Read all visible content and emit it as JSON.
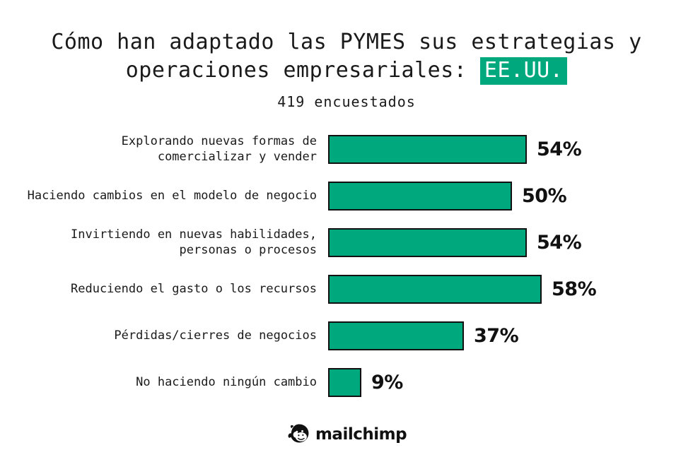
{
  "colors": {
    "accent_green": "#00a87e",
    "ink": "#1a1a1a"
  },
  "title": {
    "line1": "Cómo han adaptado las PYMES sus estrategias y",
    "line2_prefix": "operaciones empresariales: ",
    "line2_highlight": "EE.UU."
  },
  "subtitle": "419 encuestados",
  "chart_data": {
    "type": "bar",
    "orientation": "horizontal",
    "title": "Cómo han adaptado las PYMES sus estrategias y operaciones empresariales: EE.UU.",
    "subtitle": "419 encuestados",
    "categories": [
      "Explorando nuevas formas de comercializar y vender",
      "Haciendo cambios en el modelo de negocio",
      "Invirtiendo en nuevas habilidades, personas o procesos",
      "Reduciendo el gasto o los recursos",
      "Pérdidas/cierres de negocios",
      "No haciendo ningún cambio"
    ],
    "display_labels": [
      "Explorando nuevas formas de\ncomercializar y vender",
      "Haciendo cambios en el modelo de negocio",
      "Invirtiendo en nuevas habilidades,\npersonas o procesos",
      "Reduciendo el gasto o los recursos",
      "Pérdidas/cierres de negocios",
      "No haciendo ningún cambio"
    ],
    "values": [
      54,
      50,
      54,
      58,
      37,
      9
    ],
    "value_labels": [
      "54%",
      "50%",
      "54%",
      "58%",
      "37%",
      "9%"
    ],
    "unit": "%",
    "xlim": [
      0,
      60
    ],
    "grid": false,
    "legend": false,
    "bar_color": "#00a87e",
    "bar_border_color": "#111111",
    "value_label_position": "right-of-bar"
  },
  "footer": {
    "brand_icon": "mailchimp-freddie-icon",
    "brand": "mailchimp"
  }
}
